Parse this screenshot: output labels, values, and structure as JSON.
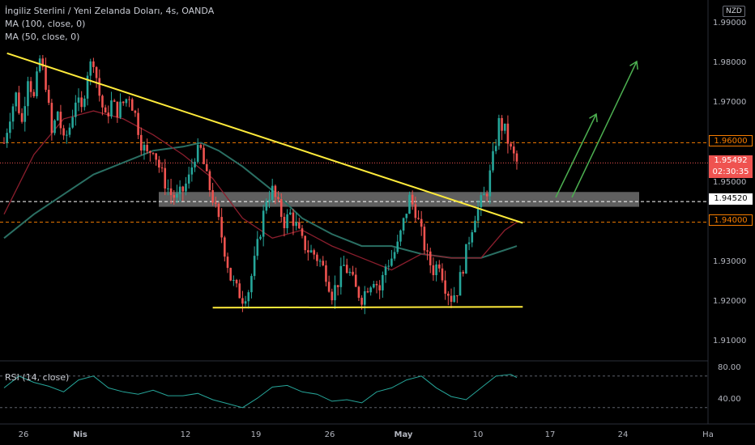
{
  "legend": {
    "title": "İngiliz Sterlini / Yeni Zelanda Doları, 4s, OANDA",
    "ma100": "MA (100, close, 0)",
    "ma50": "MA (50, close, 0)"
  },
  "currency": "NZD",
  "rsi_label": "RSI (14, close)",
  "price_tags": {
    "level_196": "1.96000",
    "current": "1.95492",
    "countdown": "02:30:35",
    "level_19452": "1.94520",
    "level_194": "1.94000"
  },
  "colors": {
    "background": "#000000",
    "candle_up": "#26a69a",
    "candle_down": "#ef5350",
    "trendline": "#ffeb3b",
    "arrows": "#4caf50",
    "ma50": "#8b1e2d",
    "ma100": "#2a6f63",
    "rsi": "#26a69a",
    "zone": "#9e9e9e",
    "level_orange": "#f57c00"
  },
  "chart_data": {
    "type": "candlestick",
    "symbol": "GBP/NZD",
    "timeframe": "4s",
    "y_axis": {
      "ticks": [
        "1.99000",
        "1.98000",
        "1.97000",
        "1.96000",
        "1.95000",
        "1.94000",
        "1.93000",
        "1.92000",
        "1.91000"
      ],
      "range": [
        1.9035,
        1.9945
      ]
    },
    "x_axis": {
      "ticks": [
        "26",
        "Nis",
        "12",
        "19",
        "26",
        "May",
        "10",
        "17",
        "24",
        "Ha"
      ]
    },
    "rsi": {
      "ticks": [
        "80.00",
        "40.00"
      ],
      "range": [
        25,
        85
      ],
      "guides": [
        70,
        30
      ]
    },
    "horizontal_levels": [
      1.96,
      1.9452,
      1.94
    ],
    "current_price": 1.95492,
    "close_path": [
      [
        0,
        1.96
      ],
      [
        2,
        1.967
      ],
      [
        4,
        1.972
      ],
      [
        6,
        1.965
      ],
      [
        8,
        1.977
      ],
      [
        10,
        1.971
      ],
      [
        12,
        1.981
      ],
      [
        14,
        1.975
      ],
      [
        16,
        1.962
      ],
      [
        18,
        1.968
      ],
      [
        20,
        1.96
      ],
      [
        22,
        1.964
      ],
      [
        24,
        1.971
      ],
      [
        26,
        1.968
      ],
      [
        28,
        1.978
      ],
      [
        30,
        1.981
      ],
      [
        32,
        1.972
      ],
      [
        34,
        1.966
      ],
      [
        36,
        1.97
      ],
      [
        38,
        1.968
      ],
      [
        40,
        1.97
      ],
      [
        42,
        1.972
      ],
      [
        44,
        1.967
      ],
      [
        46,
        1.96
      ],
      [
        48,
        1.957
      ],
      [
        50,
        1.959
      ],
      [
        52,
        1.954
      ],
      [
        54,
        1.95
      ],
      [
        56,
        1.947
      ],
      [
        58,
        1.946
      ],
      [
        60,
        1.948
      ],
      [
        62,
        1.951
      ],
      [
        64,
        1.957
      ],
      [
        66,
        1.958
      ],
      [
        68,
        1.951
      ],
      [
        70,
        1.946
      ],
      [
        72,
        1.94
      ],
      [
        74,
        1.933
      ],
      [
        76,
        1.926
      ],
      [
        78,
        1.923
      ],
      [
        80,
        1.921
      ],
      [
        82,
        1.923
      ],
      [
        84,
        1.93
      ],
      [
        86,
        1.938
      ],
      [
        88,
        1.946
      ],
      [
        90,
        1.948
      ],
      [
        92,
        1.944
      ],
      [
        94,
        1.94
      ],
      [
        96,
        1.942
      ],
      [
        98,
        1.939
      ],
      [
        100,
        1.935
      ],
      [
        102,
        1.933
      ],
      [
        104,
        1.932
      ],
      [
        106,
        1.93
      ],
      [
        108,
        1.927
      ],
      [
        110,
        1.922
      ],
      [
        112,
        1.925
      ],
      [
        114,
        1.929
      ],
      [
        116,
        1.927
      ],
      [
        118,
        1.923
      ],
      [
        120,
        1.921
      ],
      [
        122,
        1.924
      ],
      [
        124,
        1.926
      ],
      [
        126,
        1.923
      ],
      [
        128,
        1.929
      ],
      [
        130,
        1.931
      ],
      [
        132,
        1.934
      ],
      [
        134,
        1.94
      ],
      [
        136,
        1.946
      ],
      [
        138,
        1.943
      ],
      [
        140,
        1.937
      ],
      [
        142,
        1.931
      ],
      [
        144,
        1.928
      ],
      [
        146,
        1.93
      ],
      [
        148,
        1.924
      ],
      [
        150,
        1.921
      ],
      [
        152,
        1.923
      ],
      [
        154,
        1.929
      ],
      [
        156,
        1.936
      ],
      [
        158,
        1.942
      ],
      [
        160,
        1.945
      ],
      [
        162,
        1.948
      ],
      [
        164,
        1.956
      ],
      [
        166,
        1.965
      ],
      [
        168,
        1.963
      ],
      [
        170,
        1.958
      ],
      [
        172,
        1.955
      ]
    ],
    "ma50_path": [
      [
        0,
        1.942
      ],
      [
        10,
        1.957
      ],
      [
        20,
        1.966
      ],
      [
        30,
        1.968
      ],
      [
        40,
        1.966
      ],
      [
        50,
        1.962
      ],
      [
        60,
        1.957
      ],
      [
        70,
        1.951
      ],
      [
        80,
        1.941
      ],
      [
        90,
        1.936
      ],
      [
        100,
        1.938
      ],
      [
        110,
        1.934
      ],
      [
        120,
        1.931
      ],
      [
        130,
        1.928
      ],
      [
        140,
        1.932
      ],
      [
        150,
        1.931
      ],
      [
        160,
        1.931
      ],
      [
        168,
        1.938
      ],
      [
        172,
        1.94
      ]
    ],
    "ma100_path": [
      [
        0,
        1.936
      ],
      [
        10,
        1.942
      ],
      [
        20,
        1.947
      ],
      [
        30,
        1.952
      ],
      [
        40,
        1.955
      ],
      [
        50,
        1.958
      ],
      [
        60,
        1.959
      ],
      [
        66,
        1.96
      ],
      [
        72,
        1.958
      ],
      [
        80,
        1.954
      ],
      [
        90,
        1.948
      ],
      [
        100,
        1.941
      ],
      [
        110,
        1.937
      ],
      [
        120,
        1.934
      ],
      [
        130,
        1.934
      ],
      [
        140,
        1.932
      ],
      [
        150,
        1.931
      ],
      [
        160,
        1.931
      ],
      [
        168,
        1.933
      ],
      [
        172,
        1.934
      ]
    ],
    "rsi_path": [
      [
        0,
        55
      ],
      [
        5,
        70
      ],
      [
        10,
        62
      ],
      [
        15,
        57
      ],
      [
        20,
        50
      ],
      [
        25,
        65
      ],
      [
        30,
        70
      ],
      [
        35,
        55
      ],
      [
        40,
        50
      ],
      [
        45,
        47
      ],
      [
        50,
        52
      ],
      [
        55,
        45
      ],
      [
        60,
        45
      ],
      [
        65,
        48
      ],
      [
        70,
        40
      ],
      [
        75,
        35
      ],
      [
        80,
        30
      ],
      [
        85,
        42
      ],
      [
        90,
        56
      ],
      [
        95,
        58
      ],
      [
        100,
        50
      ],
      [
        105,
        47
      ],
      [
        110,
        38
      ],
      [
        115,
        40
      ],
      [
        120,
        36
      ],
      [
        125,
        50
      ],
      [
        130,
        55
      ],
      [
        135,
        65
      ],
      [
        140,
        70
      ],
      [
        145,
        55
      ],
      [
        150,
        44
      ],
      [
        155,
        40
      ],
      [
        160,
        55
      ],
      [
        165,
        70
      ],
      [
        170,
        72
      ],
      [
        172,
        68
      ]
    ],
    "annotations": {
      "descending_trendline": [
        [
          1,
          1.9825
        ],
        [
          174,
          1.9398
        ]
      ],
      "support_line": [
        [
          70,
          1.9185
        ],
        [
          174,
          1.9187
        ]
      ],
      "resistance_zone": [
        1.9453,
        1.9472
      ],
      "up_arrows": "two green arrows projecting upward"
    }
  }
}
